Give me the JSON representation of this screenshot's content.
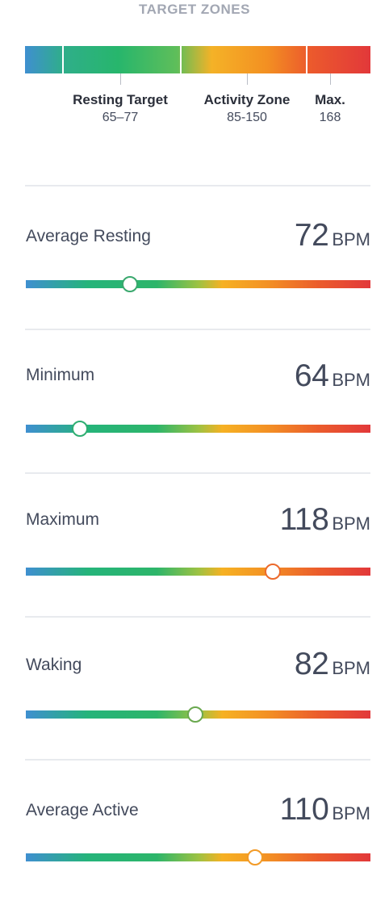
{
  "target_zones": {
    "title": "TARGET ZONES",
    "zones": [
      {
        "name": "Resting Target",
        "range": "65–77"
      },
      {
        "name": "Activity Zone",
        "range": "85-150"
      },
      {
        "name": "Max.",
        "range": "168"
      }
    ]
  },
  "metrics": [
    {
      "label": "Average Resting",
      "value": "72",
      "unit": "BPM",
      "knob_color": "#3aa86e"
    },
    {
      "label": "Minimum",
      "value": "64",
      "unit": "BPM",
      "knob_color": "#2fae72"
    },
    {
      "label": "Maximum",
      "value": "118",
      "unit": "BPM",
      "knob_color": "#ec6a2c"
    },
    {
      "label": "Waking",
      "value": "82",
      "unit": "BPM",
      "knob_color": "#6aa84f"
    },
    {
      "label": "Average Active",
      "value": "110",
      "unit": "BPM",
      "knob_color": "#f29a26"
    }
  ]
}
